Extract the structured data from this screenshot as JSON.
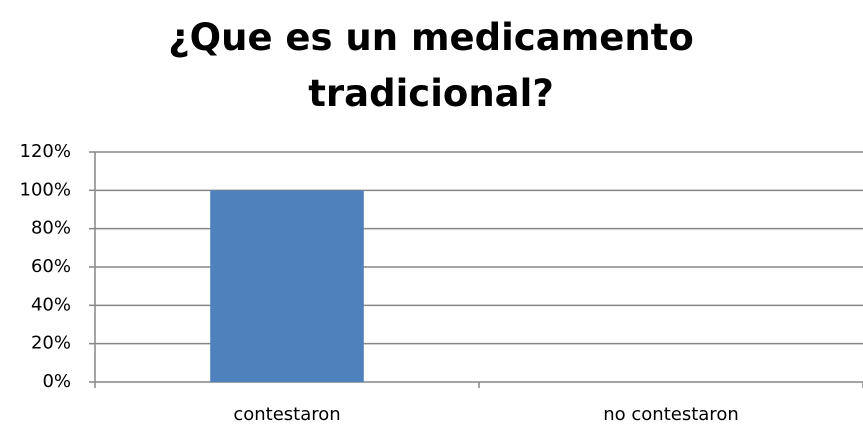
{
  "chart_data": {
    "type": "bar",
    "title": "¿Que es un medicamento tradicional?",
    "categories": [
      "contestaron",
      "no contestaron"
    ],
    "values": [
      100,
      0
    ],
    "color": "#4f81bd",
    "ylim": [
      0,
      120
    ],
    "yticks": [
      {
        "value": 0,
        "label": "0%"
      },
      {
        "value": 20,
        "label": "20%"
      },
      {
        "value": 40,
        "label": "40%"
      },
      {
        "value": 60,
        "label": "60%"
      },
      {
        "value": 80,
        "label": "80%"
      },
      {
        "value": 100,
        "label": "100%"
      },
      {
        "value": 120,
        "label": "120%"
      }
    ],
    "grid": true
  }
}
